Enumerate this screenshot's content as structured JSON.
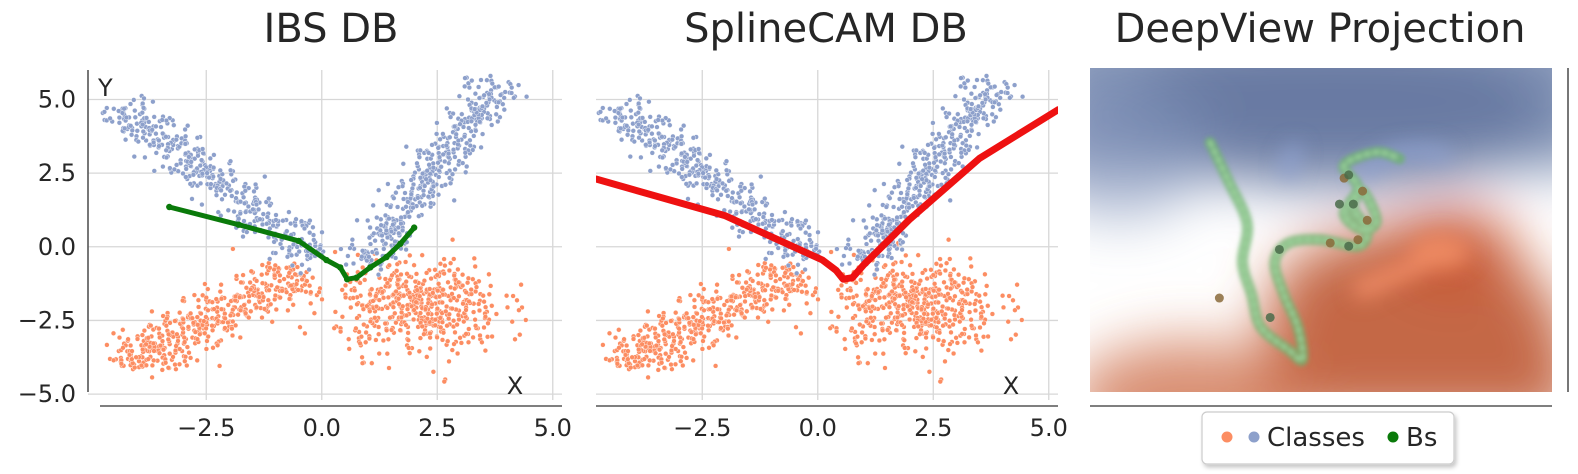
{
  "colors": {
    "class_a": "#fc8d62",
    "class_b": "#8da0cb",
    "boundary_ibs": "#0a7a0a",
    "boundary_splinecam": "#ee1111",
    "bs_path": "#6db36d",
    "grid": "#d7d7d7",
    "axis": "#555555",
    "text": "#262626"
  },
  "chart_data": [
    {
      "type": "scatter",
      "title": "IBS DB",
      "xlabel": "X",
      "ylabel": "Y",
      "xlim": [
        -4.8,
        5.2
      ],
      "ylim": [
        -5.2,
        6.0
      ],
      "xticks": [
        -2.5,
        0.0,
        2.5,
        5.0
      ],
      "xtick_labels": [
        "−2.5",
        "0.0",
        "2.5",
        "5.0"
      ],
      "yticks": [
        -5.0,
        -2.5,
        0.0,
        2.5,
        5.0
      ],
      "ytick_labels": [
        "−5.0",
        "−2.5",
        "0.0",
        "2.5",
        "5.0"
      ],
      "grid": true,
      "series": [
        {
          "name": "class 1 (blue)",
          "clusters": [
            {
              "from": [
                -4.4,
                4.8
              ],
              "to": [
                -0.1,
                -0.4
              ],
              "spread": 0.32,
              "count": 430
            },
            {
              "from": [
                0.9,
                -0.6
              ],
              "to": [
                3.9,
                5.7
              ],
              "spread": 0.28,
              "count": 430
            }
          ]
        },
        {
          "name": "class 0 (orange)",
          "clusters": [
            {
              "from": [
                -4.3,
                -4.0
              ],
              "to": [
                -0.4,
                -0.8
              ],
              "spread": 0.4,
              "count": 450
            },
            {
              "center": [
                2.1,
                -2.0
              ],
              "size": [
                1.5,
                1.1
              ],
              "count": 500
            }
          ]
        },
        {
          "name": "IBS boundary",
          "kind": "path",
          "points": [
            [
              -3.3,
              1.35
            ],
            [
              -1.8,
              0.75
            ],
            [
              -0.5,
              0.2
            ],
            [
              0.1,
              -0.45
            ],
            [
              0.4,
              -0.7
            ],
            [
              0.55,
              -1.1
            ],
            [
              0.75,
              -1.05
            ],
            [
              1.05,
              -0.7
            ],
            [
              1.4,
              -0.35
            ],
            [
              1.7,
              0.1
            ],
            [
              2.0,
              0.65
            ]
          ]
        }
      ]
    },
    {
      "type": "scatter",
      "title": "SplineCAM DB",
      "xlabel": "X",
      "xlim": [
        -4.8,
        5.2
      ],
      "ylim": [
        -5.2,
        6.0
      ],
      "xticks": [
        -2.5,
        0.0,
        2.5,
        5.0
      ],
      "xtick_labels": [
        "−2.5",
        "0.0",
        "2.5",
        "5.0"
      ],
      "grid": true,
      "series": [
        {
          "name": "class 1 (blue)",
          "same_as_panel": 1
        },
        {
          "name": "class 0 (orange)",
          "same_as_panel": 1
        },
        {
          "name": "SplineCAM boundary",
          "kind": "path",
          "points": [
            [
              -4.8,
              2.3
            ],
            [
              -2.0,
              1.05
            ],
            [
              0.1,
              -0.45
            ],
            [
              0.4,
              -0.8
            ],
            [
              0.55,
              -1.1
            ],
            [
              0.75,
              -1.05
            ],
            [
              1.0,
              -0.6
            ],
            [
              2.0,
              0.95
            ],
            [
              3.5,
              3.0
            ],
            [
              5.2,
              4.65
            ]
          ]
        }
      ]
    },
    {
      "type": "heatmap",
      "title": "DeepView Projection",
      "grid": false,
      "legend": {
        "entries": [
          "Classes",
          "Bs"
        ],
        "position": "bottom-center"
      },
      "series": [
        {
          "name": "Bs path",
          "kind": "path",
          "points": [
            [
              0.26,
              0.23
            ],
            [
              0.3,
              0.35
            ],
            [
              0.34,
              0.48
            ],
            [
              0.33,
              0.6
            ],
            [
              0.35,
              0.7
            ],
            [
              0.37,
              0.8
            ],
            [
              0.43,
              0.87
            ],
            [
              0.46,
              0.9
            ],
            [
              0.45,
              0.8
            ],
            [
              0.42,
              0.7
            ],
            [
              0.4,
              0.6
            ],
            [
              0.43,
              0.54
            ],
            [
              0.5,
              0.53
            ],
            [
              0.58,
              0.55
            ],
            [
              0.6,
              0.5
            ],
            [
              0.57,
              0.43
            ],
            [
              0.59,
              0.38
            ],
            [
              0.62,
              0.47
            ],
            [
              0.59,
              0.5
            ],
            [
              0.55,
              0.45
            ],
            [
              0.58,
              0.37
            ],
            [
              0.55,
              0.3
            ],
            [
              0.62,
              0.26
            ],
            [
              0.67,
              0.28
            ]
          ]
        },
        {
          "name": "Bs points",
          "points": [
            [
              0.41,
              0.56
            ],
            [
              0.52,
              0.54
            ],
            [
              0.56,
              0.55
            ],
            [
              0.6,
              0.47
            ],
            [
              0.57,
              0.42
            ],
            [
              0.59,
              0.38
            ],
            [
              0.54,
              0.42
            ],
            [
              0.55,
              0.34
            ],
            [
              0.56,
              0.33
            ],
            [
              0.28,
              0.71
            ],
            [
              0.39,
              0.77
            ],
            [
              0.58,
              0.53
            ]
          ]
        }
      ]
    }
  ]
}
